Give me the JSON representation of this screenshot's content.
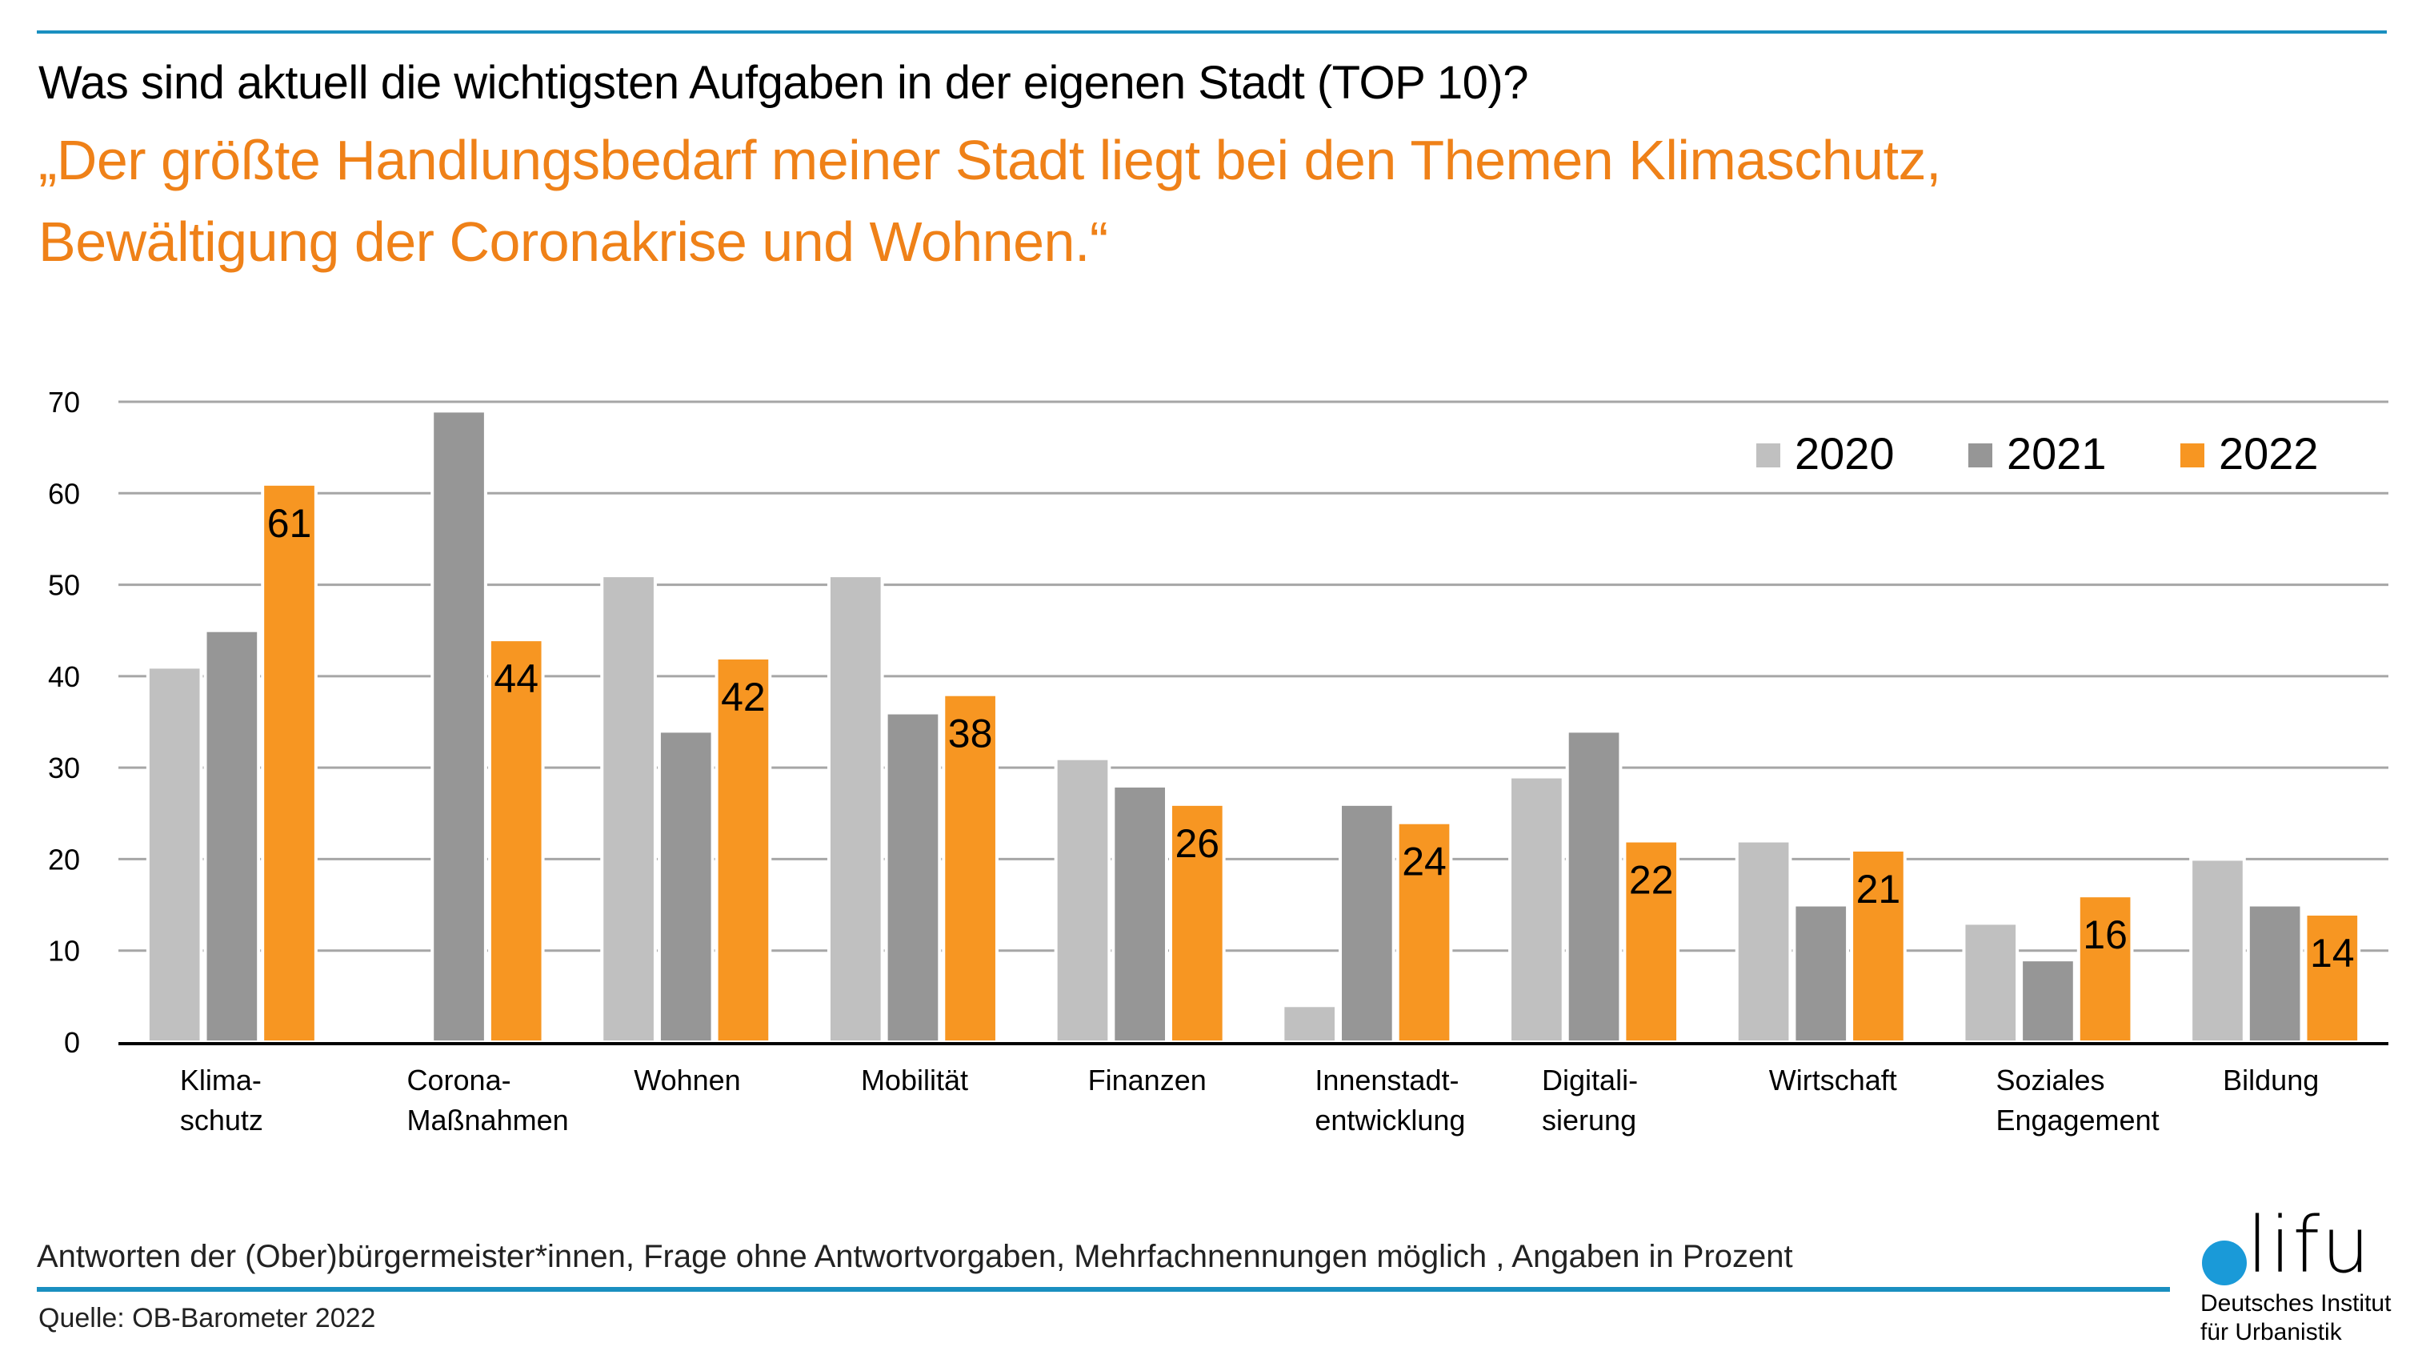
{
  "header": {
    "question": "Was sind aktuell die wichtigsten Aufgaben in der eigenen Stadt (TOP 10)?",
    "quote_line1": "„Der größte Handlungsbedarf meiner Stadt liegt bei den Themen Klimaschutz,",
    "quote_line2": "Bewältigung der Coronakrise und Wohnen.“"
  },
  "colors": {
    "accent_blue": "#1a8fc0",
    "quote_orange": "#ef8118"
  },
  "chart_data": {
    "type": "bar",
    "title": "Was sind aktuell die wichtigsten Aufgaben in der eigenen Stadt (TOP 10)?",
    "xlabel": "",
    "ylabel": "",
    "ylim": [
      0,
      70
    ],
    "yticks": [
      0,
      10,
      20,
      30,
      40,
      50,
      60,
      70
    ],
    "grid": true,
    "legend_position": "top-right",
    "categories": [
      [
        "Klima-",
        "schutz"
      ],
      [
        "Corona-",
        "Maßnahmen"
      ],
      [
        "Wohnen"
      ],
      [
        "Mobilität"
      ],
      [
        "Finanzen"
      ],
      [
        "Innenstadt-",
        "entwicklung"
      ],
      [
        "Digitali-",
        "sierung"
      ],
      [
        "Wirtschaft"
      ],
      [
        "Soziales",
        "Engagement"
      ],
      [
        "Bildung"
      ]
    ],
    "series": [
      {
        "name": "2020",
        "color": "#c0c0c0",
        "labeled": false,
        "values": [
          41,
          null,
          51,
          51,
          31,
          4,
          29,
          22,
          13,
          20
        ]
      },
      {
        "name": "2021",
        "color": "#969696",
        "labeled": false,
        "values": [
          45,
          69,
          34,
          36,
          28,
          26,
          34,
          15,
          9,
          15
        ]
      },
      {
        "name": "2022",
        "color": "#f79622",
        "labeled": true,
        "values": [
          61,
          44,
          42,
          38,
          26,
          24,
          22,
          21,
          16,
          14
        ]
      }
    ]
  },
  "footer": {
    "note": "Antworten der (Ober)bürgermeister*innen, Frage ohne Antwortvorgaben, Mehrfachnennungen möglich , Angaben in Prozent",
    "source": "Quelle: OB-Barometer 2022"
  },
  "logo": {
    "wordmark": "lifu",
    "line1": "Deutsches Institut",
    "line2": "für Urbanistik"
  }
}
